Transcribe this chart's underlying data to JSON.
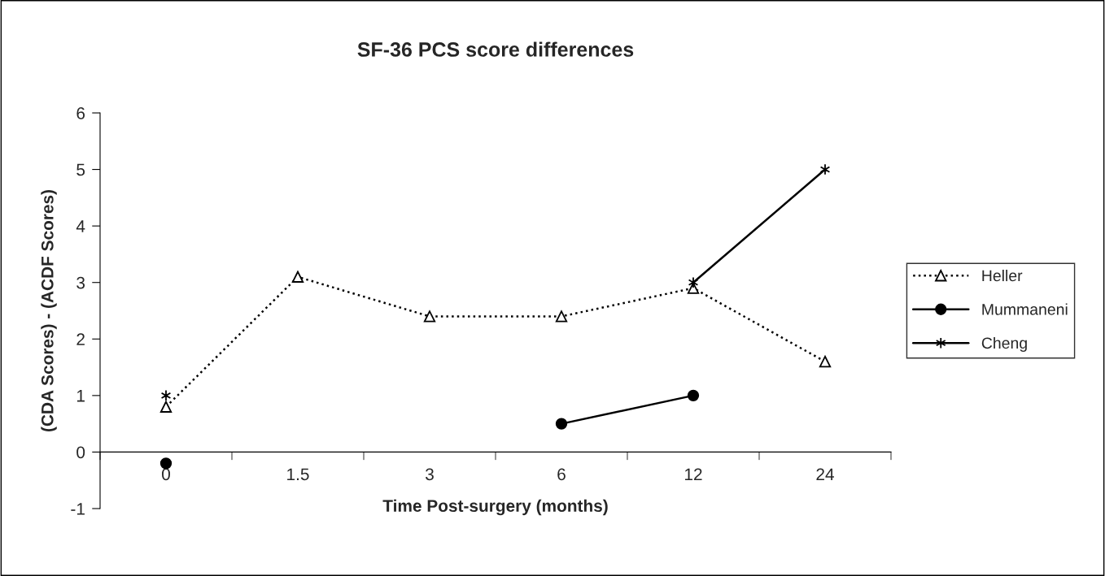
{
  "chart_data": {
    "type": "line",
    "title": "SF-36 PCS score differences",
    "xlabel": "Time Post-surgery (months)",
    "ylabel": "(CDA Scores) - (ACDF Scores)",
    "categories": [
      "0",
      "1.5",
      "3",
      "6",
      "12",
      "24"
    ],
    "series": [
      {
        "name": "Heller",
        "color": "#000000",
        "marker": "triangle",
        "line_style": "dotted",
        "values": [
          0.8,
          3.1,
          2.4,
          2.4,
          2.9,
          1.6
        ]
      },
      {
        "name": "Mummaneni",
        "color": "#000000",
        "marker": "circle",
        "line_style": "solid",
        "values": [
          -0.2,
          null,
          null,
          0.5,
          1.0,
          null
        ]
      },
      {
        "name": "Cheng",
        "color": "#000000",
        "marker": "cross",
        "line_style": "solid",
        "values": [
          1.0,
          null,
          null,
          null,
          3.0,
          5.0
        ]
      }
    ],
    "ylim": [
      -1,
      6
    ],
    "yticks": [
      -1,
      0,
      1,
      2,
      3,
      4,
      5,
      6
    ],
    "grid": false,
    "legend": "right"
  }
}
